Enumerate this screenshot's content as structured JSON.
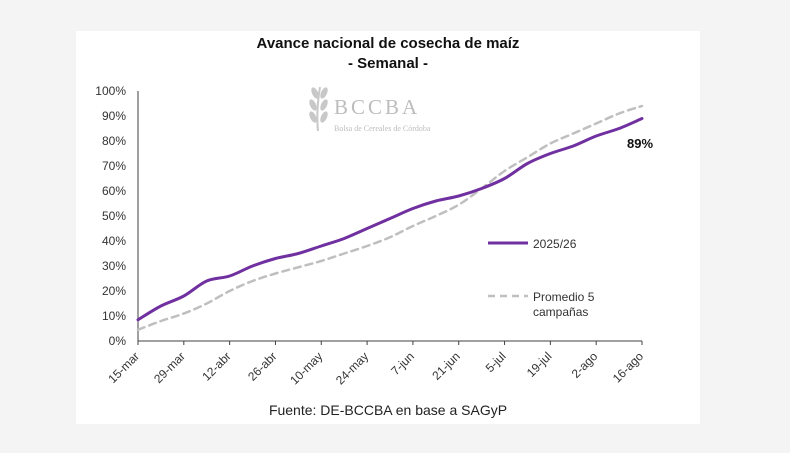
{
  "chart_data": {
    "type": "line",
    "title": "Avance nacional de cosecha de maíz",
    "subtitle": "- Semanal -",
    "source": "Fuente: DE-BCCBA en base a SAGyP",
    "watermark": {
      "name": "BCCBA",
      "tagline": "Bolsa de Cereales de Córdoba"
    },
    "x_ticks": [
      "15-mar",
      "29-mar",
      "12-abr",
      "26-abr",
      "10-may",
      "24-may",
      "7-jun",
      "21-jun",
      "5-jul",
      "19-jul",
      "2-ago",
      "16-ago"
    ],
    "y_ticks": [
      "0%",
      "10%",
      "20%",
      "30%",
      "40%",
      "50%",
      "60%",
      "70%",
      "80%",
      "90%",
      "100%"
    ],
    "ylim": [
      0,
      100
    ],
    "annotation": "89%",
    "series": [
      {
        "name": "2025/26",
        "color": "#7030a0",
        "style": "solid",
        "x": [
          "15-mar",
          "22-mar",
          "29-mar",
          "5-abr",
          "12-abr",
          "19-abr",
          "26-abr",
          "3-may",
          "10-may",
          "17-may",
          "24-may",
          "31-may",
          "7-jun",
          "14-jun",
          "21-jun",
          "28-jun",
          "5-jul",
          "12-jul",
          "19-jul",
          "26-jul",
          "2-ago",
          "9-ago",
          "16-ago"
        ],
        "values": [
          8.5,
          14,
          18,
          24,
          26,
          30,
          33,
          35,
          38,
          41,
          45,
          49,
          53,
          56,
          58,
          61,
          65,
          71,
          75,
          78,
          82,
          85,
          89
        ]
      },
      {
        "name": "Promedio 5 campañas",
        "color": "#bfbfbf",
        "style": "dashed",
        "x": [
          "15-mar",
          "22-mar",
          "29-mar",
          "5-abr",
          "12-abr",
          "19-abr",
          "26-abr",
          "3-may",
          "10-may",
          "17-may",
          "24-may",
          "31-may",
          "7-jun",
          "14-jun",
          "21-jun",
          "28-jun",
          "5-jul",
          "12-jul",
          "19-jul",
          "26-jul",
          "2-ago",
          "9-ago",
          "16-ago"
        ],
        "values": [
          4.5,
          8,
          11,
          15,
          20,
          24,
          27,
          29.5,
          32,
          35,
          38,
          41.5,
          46,
          50,
          54.5,
          61,
          68,
          73.5,
          79,
          83,
          87,
          91,
          94
        ]
      }
    ],
    "legend": [
      "2025/26",
      "Promedio 5 campañas"
    ],
    "legend_lines": [
      "Promedio 5",
      "campañas"
    ]
  }
}
